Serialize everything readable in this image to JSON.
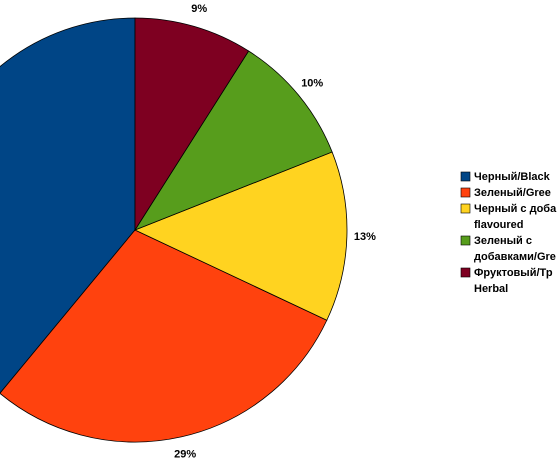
{
  "chart_data": {
    "type": "pie",
    "categories": [
      [
        "Черный/Black"
      ],
      [
        "Зеленый/Gree"
      ],
      [
        "Черный с доба",
        "flavoured"
      ],
      [
        "Зеленый с",
        "добавками/Gre"
      ],
      [
        "Фруктовый/Тр",
        "Herbal"
      ]
    ],
    "values": [
      39,
      29,
      13,
      10,
      9
    ],
    "value_labels": [
      null,
      "29%",
      "13%",
      "10%",
      "9%"
    ],
    "colors": [
      "#004586",
      "#ff420e",
      "#ffd320",
      "#579d1c",
      "#7e0021"
    ]
  }
}
